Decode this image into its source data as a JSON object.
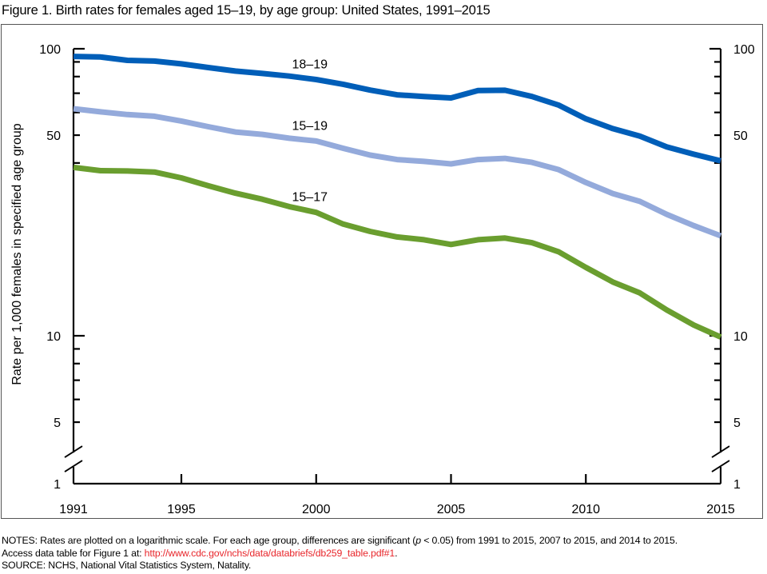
{
  "figure": {
    "title": "Figure 1. Birth rates for females aged 15–19, by age group: United States, 1991–2015"
  },
  "notes": {
    "line1_prefix": "NOTES: Rates are plotted on a logarithmic scale. For each age group, differences are significant (",
    "line1_p": "p",
    "line1_suffix": " < 0.05) from 1991 to 2015, 2007 to 2015, and 2014 to 2015.",
    "line2_prefix": "Access data table for Figure 1 at: ",
    "line2_link": "http://www.cdc.gov/nchs/data/databriefs/db259_table.pdf#1",
    "line2_suffix": ".",
    "line3": "SOURCE: NCHS, National Vital Statistics System, Natality."
  },
  "chart_data": {
    "type": "line",
    "title": "Figure 1. Birth rates for females aged 15–19, by age group: United States, 1991–2015",
    "xlabel": "",
    "ylabel": "Rate per 1,000 females in specified age group",
    "yscale": "log",
    "ylim": [
      1,
      100
    ],
    "xlim": [
      1991,
      2015
    ],
    "axis_break": "between 1 and 5",
    "x_tick_labels": [
      "1991",
      "1995",
      "2000",
      "2005",
      "2010",
      "2015"
    ],
    "x_ticks": [
      1991,
      1995,
      2000,
      2005,
      2010,
      2015
    ],
    "y_tick_labels": [
      "100",
      "50",
      "10",
      "5",
      "1"
    ],
    "y_labeled_ticks": [
      100,
      50,
      10,
      5,
      1
    ],
    "y_minor_ticks": [
      90,
      80,
      70,
      60,
      40,
      9,
      8,
      7,
      6
    ],
    "right_axis_mirrored": true,
    "grid": false,
    "legend": "inline labels",
    "x": [
      1991,
      1992,
      1993,
      1994,
      1995,
      1996,
      1997,
      1998,
      1999,
      2000,
      2001,
      2002,
      2003,
      2004,
      2005,
      2006,
      2007,
      2008,
      2009,
      2010,
      2011,
      2012,
      2013,
      2014,
      2015
    ],
    "series": [
      {
        "name": "18–19",
        "color": "#005eb8",
        "label_year": 2000,
        "values": [
          94.0,
          93.6,
          91.1,
          90.6,
          88.6,
          86.0,
          83.6,
          82.0,
          80.3,
          78.1,
          75.2,
          71.8,
          69.1,
          68.2,
          67.4,
          71.5,
          71.7,
          68.2,
          63.6,
          57.0,
          52.7,
          49.6,
          45.5,
          42.9,
          40.7
        ]
      },
      {
        "name": "15–19",
        "color": "#94aadb",
        "label_year": 2000,
        "values": [
          61.8,
          60.3,
          59.0,
          58.2,
          56.0,
          53.5,
          51.3,
          50.3,
          48.8,
          47.7,
          45.0,
          42.6,
          41.1,
          40.5,
          39.7,
          41.1,
          41.5,
          40.2,
          37.9,
          34.2,
          31.3,
          29.4,
          26.5,
          24.2,
          22.3
        ]
      },
      {
        "name": "15–17",
        "color": "#6a9e2f",
        "label_year": 2000,
        "values": [
          38.6,
          37.6,
          37.5,
          37.2,
          35.5,
          33.3,
          31.4,
          29.9,
          28.2,
          26.9,
          24.5,
          23.1,
          22.1,
          21.6,
          20.8,
          21.6,
          21.9,
          21.1,
          19.6,
          17.3,
          15.4,
          14.1,
          12.3,
          10.9,
          9.9
        ]
      }
    ]
  }
}
